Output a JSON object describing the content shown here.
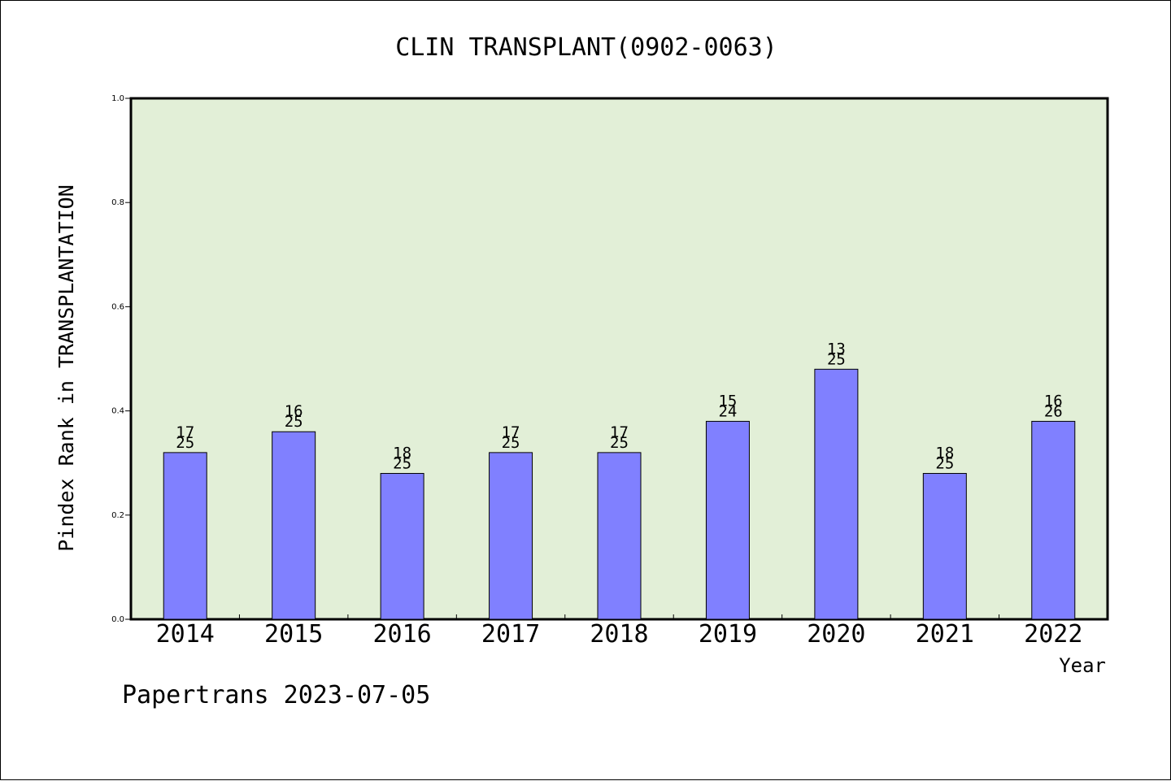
{
  "chart_data": {
    "type": "bar",
    "title": "CLIN TRANSPLANT(0902-0063)",
    "xlabel": "Year",
    "ylabel": "Pindex Rank in TRANSPLANTATION",
    "footer": "Papertrans 2023-07-05",
    "categories": [
      "2014",
      "2015",
      "2016",
      "2017",
      "2018",
      "2019",
      "2020",
      "2021",
      "2022"
    ],
    "values": [
      0.32,
      0.36,
      0.28,
      0.32,
      0.32,
      0.38,
      0.48,
      0.28,
      0.38
    ],
    "rank": [
      "17",
      "16",
      "18",
      "17",
      "17",
      "15",
      "13",
      "18",
      "16"
    ],
    "total": [
      "25",
      "25",
      "25",
      "25",
      "25",
      "24",
      "25",
      "25",
      "26"
    ],
    "ylim": [
      0,
      1
    ],
    "yticks": [
      "0.0",
      "0.2",
      "0.4",
      "0.6",
      "0.8",
      "1.0"
    ],
    "grid": false,
    "colors": {
      "plot_background": "#e2efd7",
      "bar_fill": "#8080ff",
      "bar_stroke": "#000000"
    }
  }
}
